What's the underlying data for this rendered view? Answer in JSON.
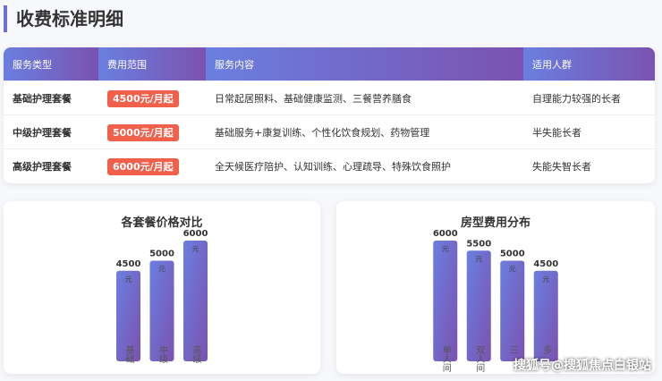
{
  "header": {
    "title": "收费标准明细"
  },
  "table": {
    "columns": [
      "服务类型",
      "费用范围",
      "服务内容",
      "适用人群"
    ],
    "rows": [
      [
        "基础护理套餐",
        "4500元/月起",
        "日常起居照料、基础健康监测、三餐营养膳食",
        "自理能力较强的长者"
      ],
      [
        "中级护理套餐",
        "5000元/月起",
        "基础服务+康复训练、个性化饮食规划、药物管理",
        "半失能长者"
      ],
      [
        "高级护理套餐",
        "6000元/月起",
        "全天候医疗陪护、认知训练、心理疏导、特殊饮食照护",
        "失能失智长者"
      ]
    ]
  },
  "charts": [
    {
      "type": "bar",
      "title": "各套餐价格对比",
      "unit": "元",
      "categories": [
        "基础",
        "中级",
        "高级"
      ],
      "values": [
        4500,
        5000,
        6000
      ],
      "ylim": [
        0,
        6000
      ]
    },
    {
      "type": "bar",
      "title": "房型费用分布",
      "unit": "元",
      "categories": [
        "单人间",
        "双人间",
        "三",
        "多"
      ],
      "values": [
        6000,
        5500,
        5000,
        4500
      ],
      "ylim": [
        0,
        6000
      ]
    }
  ],
  "watermark": "搜狐号@搜狐焦点白银站"
}
